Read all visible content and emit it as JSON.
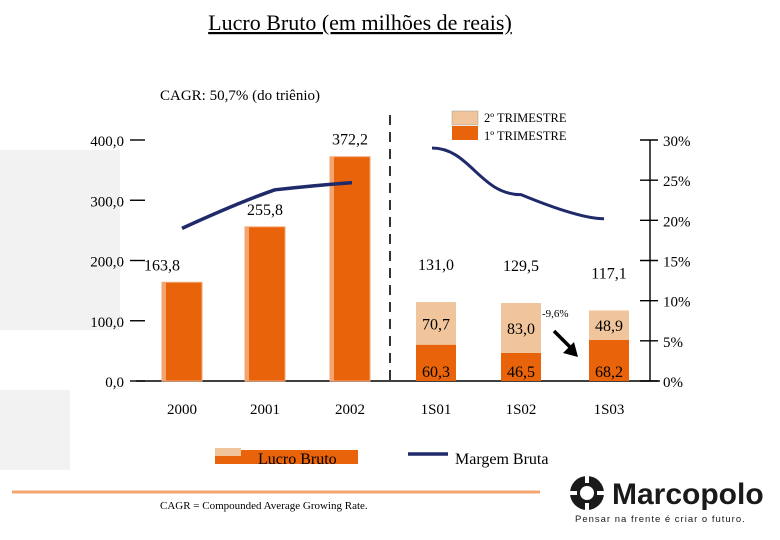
{
  "title": "Lucro Bruto  (em milhões de reais)",
  "cagr_label": "CAGR: 50,7% (do triênio)",
  "footnote": "CAGR = Compounded Average Growing Rate.",
  "brand": {
    "name": "Marcopolo",
    "slogan": "Pensar na frente é criar o futuro.",
    "color": "#1a1a1a"
  },
  "colors": {
    "bar": "#e8630a",
    "bar_light": "#f1c59b",
    "bar_highlight": "#f4a470",
    "line": "#1f2a6b",
    "arrow": "#000000",
    "watermark": "#d9d9d9"
  },
  "chart_data": {
    "type": "bar",
    "categories": [
      "2000",
      "2001",
      "2002",
      "1S01",
      "1S02",
      "1S03"
    ],
    "series": [
      {
        "name": "Lucro Bruto",
        "values": [
          163.8,
          255.8,
          372.2,
          null,
          null,
          null
        ],
        "labels": [
          "163,8",
          "255,8",
          "372,2",
          "",
          "",
          ""
        ]
      },
      {
        "name": "1º TRIMESTRE",
        "values": [
          null,
          null,
          null,
          60.3,
          46.5,
          68.2
        ],
        "labels": [
          "",
          "",
          "",
          "60,3",
          "46,5",
          "68,2"
        ]
      },
      {
        "name": "2º TRIMESTRE",
        "values": [
          null,
          null,
          null,
          70.7,
          83.0,
          48.9
        ],
        "labels": [
          "",
          "",
          "",
          "70,7",
          "83,0",
          "48,9"
        ]
      }
    ],
    "totals": [
      null,
      null,
      null,
      131.0,
      129.5,
      117.1
    ],
    "total_labels": [
      "",
      "",
      "",
      "131,0",
      "129,5",
      "117,1"
    ],
    "line_series": {
      "name": "Margem Bruta",
      "annual": {
        "x": [
          2000,
          2001,
          2002
        ],
        "y": [
          19.0,
          23.8,
          24.7
        ]
      },
      "semester": {
        "x": [
          "1S01",
          "1S02",
          "1S03"
        ],
        "y": [
          29.0,
          23.2,
          20.2
        ]
      }
    },
    "y_left": {
      "ylim": [
        0,
        400
      ],
      "ticks": [
        0,
        100,
        200,
        300,
        400
      ],
      "tick_labels": [
        "0,0",
        "100,0",
        "200,0",
        "300,0",
        "400,0"
      ]
    },
    "y_right": {
      "ylim": [
        0,
        30
      ],
      "ticks": [
        0,
        5,
        10,
        15,
        20,
        25,
        30
      ],
      "tick_labels": [
        "0%",
        "5%",
        "10%",
        "15%",
        "20%",
        "25%",
        "30%"
      ]
    },
    "annotation": {
      "text": "-9,6%"
    },
    "legend": {
      "bottom": [
        "Lucro Bruto",
        "Margem Bruta"
      ],
      "top": [
        "2º TRIMESTRE",
        "1º TRIMESTRE"
      ],
      "position": "bottom"
    },
    "xlabel": "",
    "ylabel": ""
  }
}
